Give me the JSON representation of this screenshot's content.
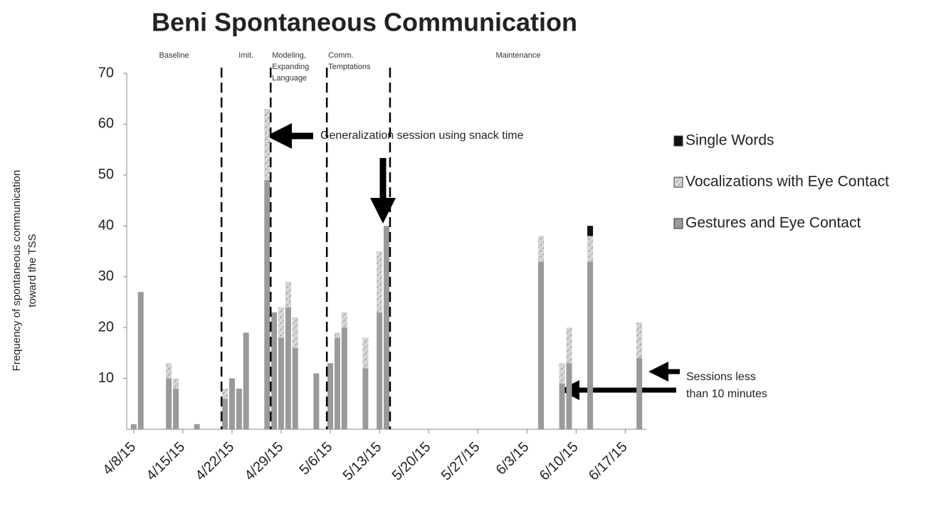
{
  "chart_data": {
    "type": "stacked_bar",
    "title": "Beni Spontaneous Communication",
    "y_label": [
      "Frequency of spontaneous communication",
      "toward the TSS"
    ],
    "x": [
      "4/8/15",
      "4/9/15",
      "4/13/15",
      "4/14/15",
      "4/17/15",
      "4/21/15",
      "4/22/15",
      "4/23/15",
      "4/24/15",
      "4/27/15",
      "4/28/15",
      "4/29/15",
      "4/30/15",
      "5/1/15",
      "5/4/15",
      "5/6/15",
      "5/7/15",
      "5/8/15",
      "5/11/15",
      "5/13/15",
      "5/14/15",
      "6/5/15",
      "6/8/15",
      "6/9/15",
      "6/12/15",
      "6/19/15"
    ],
    "series": [
      {
        "name": "Single Words",
        "color": "#111111",
        "values": [
          0,
          0,
          0,
          0,
          0,
          0,
          0,
          0,
          0,
          0,
          0,
          0,
          0,
          0,
          0,
          0,
          0,
          0,
          0,
          0,
          0,
          0,
          0,
          0,
          2,
          0
        ]
      },
      {
        "name": "Vocalizations with Eye Contact",
        "color": "#d6d6d6",
        "values": [
          0,
          0,
          3,
          2,
          0,
          2,
          0,
          0,
          0,
          14,
          0,
          6,
          5,
          6,
          0,
          0,
          1,
          3,
          6,
          12,
          0,
          5,
          4,
          7,
          5,
          7
        ]
      },
      {
        "name": "Gestures and Eye Contact",
        "color": "#9a9a9a",
        "values": [
          1,
          27,
          10,
          8,
          1,
          6,
          10,
          8,
          19,
          49,
          23,
          18,
          24,
          16,
          11,
          13,
          18,
          20,
          12,
          23,
          40,
          33,
          9,
          13,
          33,
          14
        ]
      }
    ],
    "xlim": [
      "4/7/15",
      "6/20/15"
    ],
    "xticks": [
      "4/8/15",
      "4/15/15",
      "4/22/15",
      "4/29/15",
      "5/6/15",
      "5/13/15",
      "5/20/15",
      "5/27/15",
      "6/3/15",
      "6/10/15",
      "6/17/15"
    ],
    "ylim": [
      0,
      70
    ],
    "yticks": [
      10,
      20,
      30,
      40,
      50,
      60,
      70
    ],
    "phase_lines": [
      "4/20/15",
      "4/27/15",
      "5/5/15",
      "5/14/15"
    ],
    "phases": [
      [
        "Baseline"
      ],
      [
        "Imit."
      ],
      [
        "Modeling,",
        "Expanding",
        "Language"
      ],
      [
        "Comm.",
        "Temptations"
      ],
      [
        "Maintenance"
      ]
    ],
    "annotations": [
      [
        "Generalization session using snack time"
      ],
      [
        "Sessions less",
        "than 10 minutes"
      ]
    ]
  }
}
